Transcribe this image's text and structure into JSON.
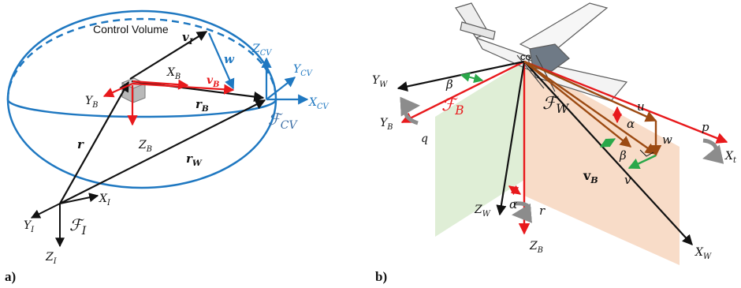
{
  "panel_a": {
    "panel_label": "a)",
    "title": "Control Volume",
    "labels": {
      "vI": "v",
      "vI_sub": "I",
      "w": "w",
      "XB": "X",
      "XB_sub": "B",
      "vB": "v",
      "vB_sub": "B",
      "YB": "Y",
      "YB_sub": "B",
      "rB": "r",
      "rB_sub": "B",
      "ZB": "Z",
      "ZB_sub": "B",
      "r": "r",
      "rW": "r",
      "rW_sub": "W",
      "ZCV": "Z",
      "ZCV_sub": "CV",
      "YCV": "Y",
      "YCV_sub": "CV",
      "XCV": "X",
      "XCV_sub": "CV",
      "FCV": "ℱ",
      "FCV_sub": "CV",
      "XI": "X",
      "XI_sub": "I",
      "YI": "Y",
      "YI_sub": "I",
      "ZI": "Z",
      "ZI_sub": "I",
      "FI": "ℱ",
      "FI_sub": "I"
    }
  },
  "panel_b": {
    "panel_label": "b)",
    "labels": {
      "CG": "CG",
      "YW": "Y",
      "YW_sub": "W",
      "beta_top": "β",
      "YB": "Y",
      "YB_sub": "B",
      "FB": "ℱ",
      "FB_sub": "B",
      "FW": "ℱ",
      "FW_sub": "W",
      "q": "q",
      "u": "u",
      "alpha_right": "α",
      "p": "p",
      "Xt": "X",
      "Xt_sub": "t",
      "w": "w",
      "beta_right": "β",
      "vB": "v",
      "vB_sub": "B",
      "v": "v",
      "alpha_low": "α",
      "ZW": "Z",
      "ZW_sub": "W",
      "r": "r",
      "ZB": "Z",
      "ZB_sub": "B",
      "XW": "X",
      "XW_sub": "W"
    }
  },
  "colors": {
    "blue": "#1f78c1",
    "red": "#e8191c",
    "black": "#111111",
    "green": "#2aa84a",
    "brown": "#9c4a12",
    "green_plane": "#dfeed6",
    "orange_plane": "#f8dcc8",
    "gray": "#8c8c8c"
  }
}
